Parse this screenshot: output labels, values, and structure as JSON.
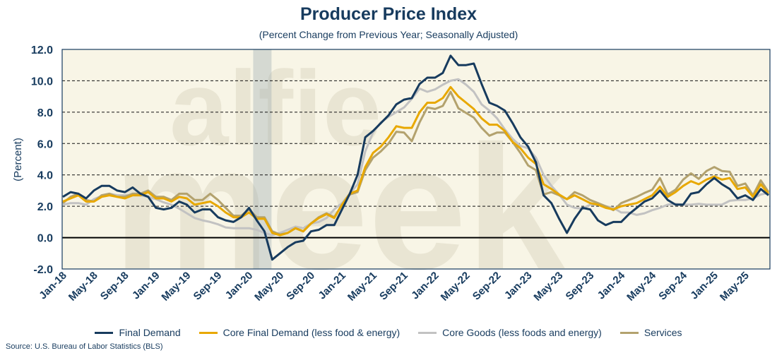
{
  "chart_data": {
    "type": "line",
    "title": "Producer Price Index",
    "subtitle": "(Percent Change from Previous Year; Seasonally Adjusted)",
    "ylabel": "(Percent)",
    "xlabel": "",
    "ylim": [
      -2,
      12
    ],
    "yticks": [
      "-2.0",
      "0.0",
      "2.0",
      "4.0",
      "6.0",
      "8.0",
      "10.0",
      "12.0"
    ],
    "ytick_values": [
      -2,
      0,
      2,
      4,
      6,
      8,
      10,
      12
    ],
    "grid": "horizontal dashed",
    "legend_position": "bottom",
    "x_start": "Jan-18",
    "x_end": "Aug-25",
    "x_count": 92,
    "xtick_every": 4,
    "xticks": [
      "Jan-18",
      "May-18",
      "Sep-18",
      "Jan-19",
      "May-19",
      "Sep-19",
      "Jan-20",
      "May-20",
      "Sep-20",
      "Jan-21",
      "May-21",
      "Sep-21",
      "Jan-22",
      "May-22",
      "Sep-22",
      "Jan-23",
      "May-23",
      "Sep-23",
      "Jan-24",
      "May-24",
      "Sep-24",
      "Jan-25",
      "May-25"
    ],
    "recession": {
      "start_index": 25,
      "end_index": 27
    },
    "series": [
      {
        "name": "Final Demand",
        "color": "#173B5E",
        "values": [
          2.6,
          2.9,
          2.8,
          2.5,
          3.0,
          3.3,
          3.3,
          3.0,
          2.9,
          3.2,
          2.8,
          2.6,
          1.9,
          1.8,
          1.9,
          2.3,
          2.1,
          1.6,
          1.8,
          1.8,
          1.3,
          1.1,
          1.0,
          1.3,
          1.9,
          1.1,
          0.4,
          -1.4,
          -1.0,
          -0.6,
          -0.3,
          -0.2,
          0.4,
          0.5,
          0.8,
          0.8,
          1.8,
          2.8,
          4.0,
          6.4,
          6.8,
          7.3,
          7.8,
          8.5,
          8.8,
          8.9,
          9.8,
          10.2,
          10.2,
          10.5,
          11.6,
          11.0,
          11.0,
          11.1,
          9.8,
          8.6,
          8.4,
          8.1,
          7.3,
          6.4,
          5.8,
          4.8,
          2.7,
          2.2,
          1.2,
          0.3,
          1.2,
          1.9,
          1.8,
          1.1,
          0.8,
          1.0,
          1.0,
          1.5,
          1.9,
          2.3,
          2.5,
          3.0,
          2.4,
          2.1,
          2.1,
          2.8,
          2.9,
          3.4,
          3.8,
          3.4,
          3.1,
          2.5,
          2.7,
          2.4,
          3.1,
          2.7
        ]
      },
      {
        "name": "Core Final Demand (less food & energy)",
        "color": "#E8A800",
        "values": [
          2.3,
          2.5,
          2.7,
          2.3,
          2.3,
          2.6,
          2.7,
          2.6,
          2.5,
          2.7,
          2.7,
          2.9,
          2.5,
          2.5,
          2.3,
          2.6,
          2.5,
          2.1,
          2.2,
          2.3,
          2.0,
          1.6,
          1.3,
          1.3,
          1.6,
          1.2,
          1.2,
          0.3,
          0.15,
          0.3,
          0.6,
          0.4,
          0.9,
          1.25,
          1.5,
          1.25,
          2.1,
          2.8,
          3.0,
          4.5,
          5.4,
          5.8,
          6.4,
          7.1,
          7.0,
          7.0,
          8.0,
          8.6,
          8.6,
          8.9,
          9.6,
          9.0,
          8.6,
          8.2,
          7.6,
          7.2,
          7.2,
          6.8,
          6.1,
          5.7,
          5.1,
          4.7,
          3.4,
          3.1,
          2.75,
          2.45,
          2.7,
          2.45,
          2.2,
          2.1,
          1.9,
          1.8,
          2.0,
          2.1,
          2.2,
          2.45,
          2.7,
          3.25,
          2.6,
          2.9,
          3.3,
          3.6,
          3.4,
          3.7,
          3.9,
          3.7,
          3.8,
          3.1,
          3.2,
          2.6,
          3.4,
          2.8
        ]
      },
      {
        "name": "Core Goods (less foods and energy)",
        "color": "#C2C2C2",
        "values": [
          2.1,
          2.2,
          2.2,
          2.1,
          2.45,
          2.65,
          2.8,
          2.7,
          2.7,
          2.7,
          2.7,
          2.6,
          2.45,
          2.25,
          2.1,
          1.85,
          1.55,
          1.25,
          1.1,
          1.0,
          0.85,
          0.65,
          0.6,
          0.6,
          0.6,
          0.5,
          0.3,
          0.15,
          0.3,
          0.5,
          0.7,
          0.6,
          0.9,
          1.0,
          1.25,
          1.8,
          2.2,
          2.8,
          3.4,
          5.5,
          6.7,
          7.35,
          7.7,
          8.0,
          8.3,
          8.85,
          9.5,
          9.3,
          9.45,
          9.75,
          10.0,
          10.1,
          9.75,
          9.3,
          8.5,
          8.1,
          7.6,
          6.9,
          6.3,
          5.85,
          5.7,
          5.1,
          4.0,
          3.3,
          2.75,
          2.1,
          1.9,
          1.85,
          2.1,
          2.1,
          2.0,
          1.9,
          1.6,
          1.6,
          1.45,
          1.55,
          1.75,
          1.9,
          2.1,
          2.15,
          2.1,
          2.1,
          2.15,
          2.1,
          2.1,
          2.1,
          2.35,
          2.4,
          2.4,
          2.5,
          2.75,
          2.85
        ]
      },
      {
        "name": "Services",
        "color": "#B3A26E",
        "values": [
          2.2,
          2.6,
          2.8,
          2.4,
          2.3,
          2.7,
          2.8,
          2.6,
          2.6,
          2.8,
          2.8,
          3.0,
          2.6,
          2.6,
          2.4,
          2.8,
          2.8,
          2.4,
          2.4,
          2.8,
          2.4,
          1.9,
          1.4,
          1.4,
          1.8,
          1.3,
          1.3,
          0.4,
          0.2,
          0.3,
          0.6,
          0.4,
          0.9,
          1.3,
          1.55,
          1.3,
          2.1,
          2.75,
          2.9,
          4.3,
          5.1,
          5.5,
          6.0,
          6.75,
          6.7,
          6.15,
          7.35,
          8.3,
          8.2,
          8.4,
          9.3,
          8.25,
          7.95,
          7.65,
          7.0,
          6.5,
          6.7,
          6.7,
          6.1,
          5.4,
          4.6,
          4.3,
          2.75,
          2.9,
          2.7,
          2.45,
          2.9,
          2.7,
          2.4,
          2.2,
          2.0,
          1.75,
          2.2,
          2.4,
          2.6,
          2.85,
          3.05,
          3.8,
          2.75,
          3.05,
          3.7,
          4.1,
          3.75,
          4.25,
          4.5,
          4.25,
          4.2,
          3.3,
          3.45,
          2.7,
          3.65,
          2.9
        ]
      }
    ],
    "source": "Source: U.S. Bureau of Labor Statistics (BLS)"
  },
  "watermark": "alfie meek"
}
